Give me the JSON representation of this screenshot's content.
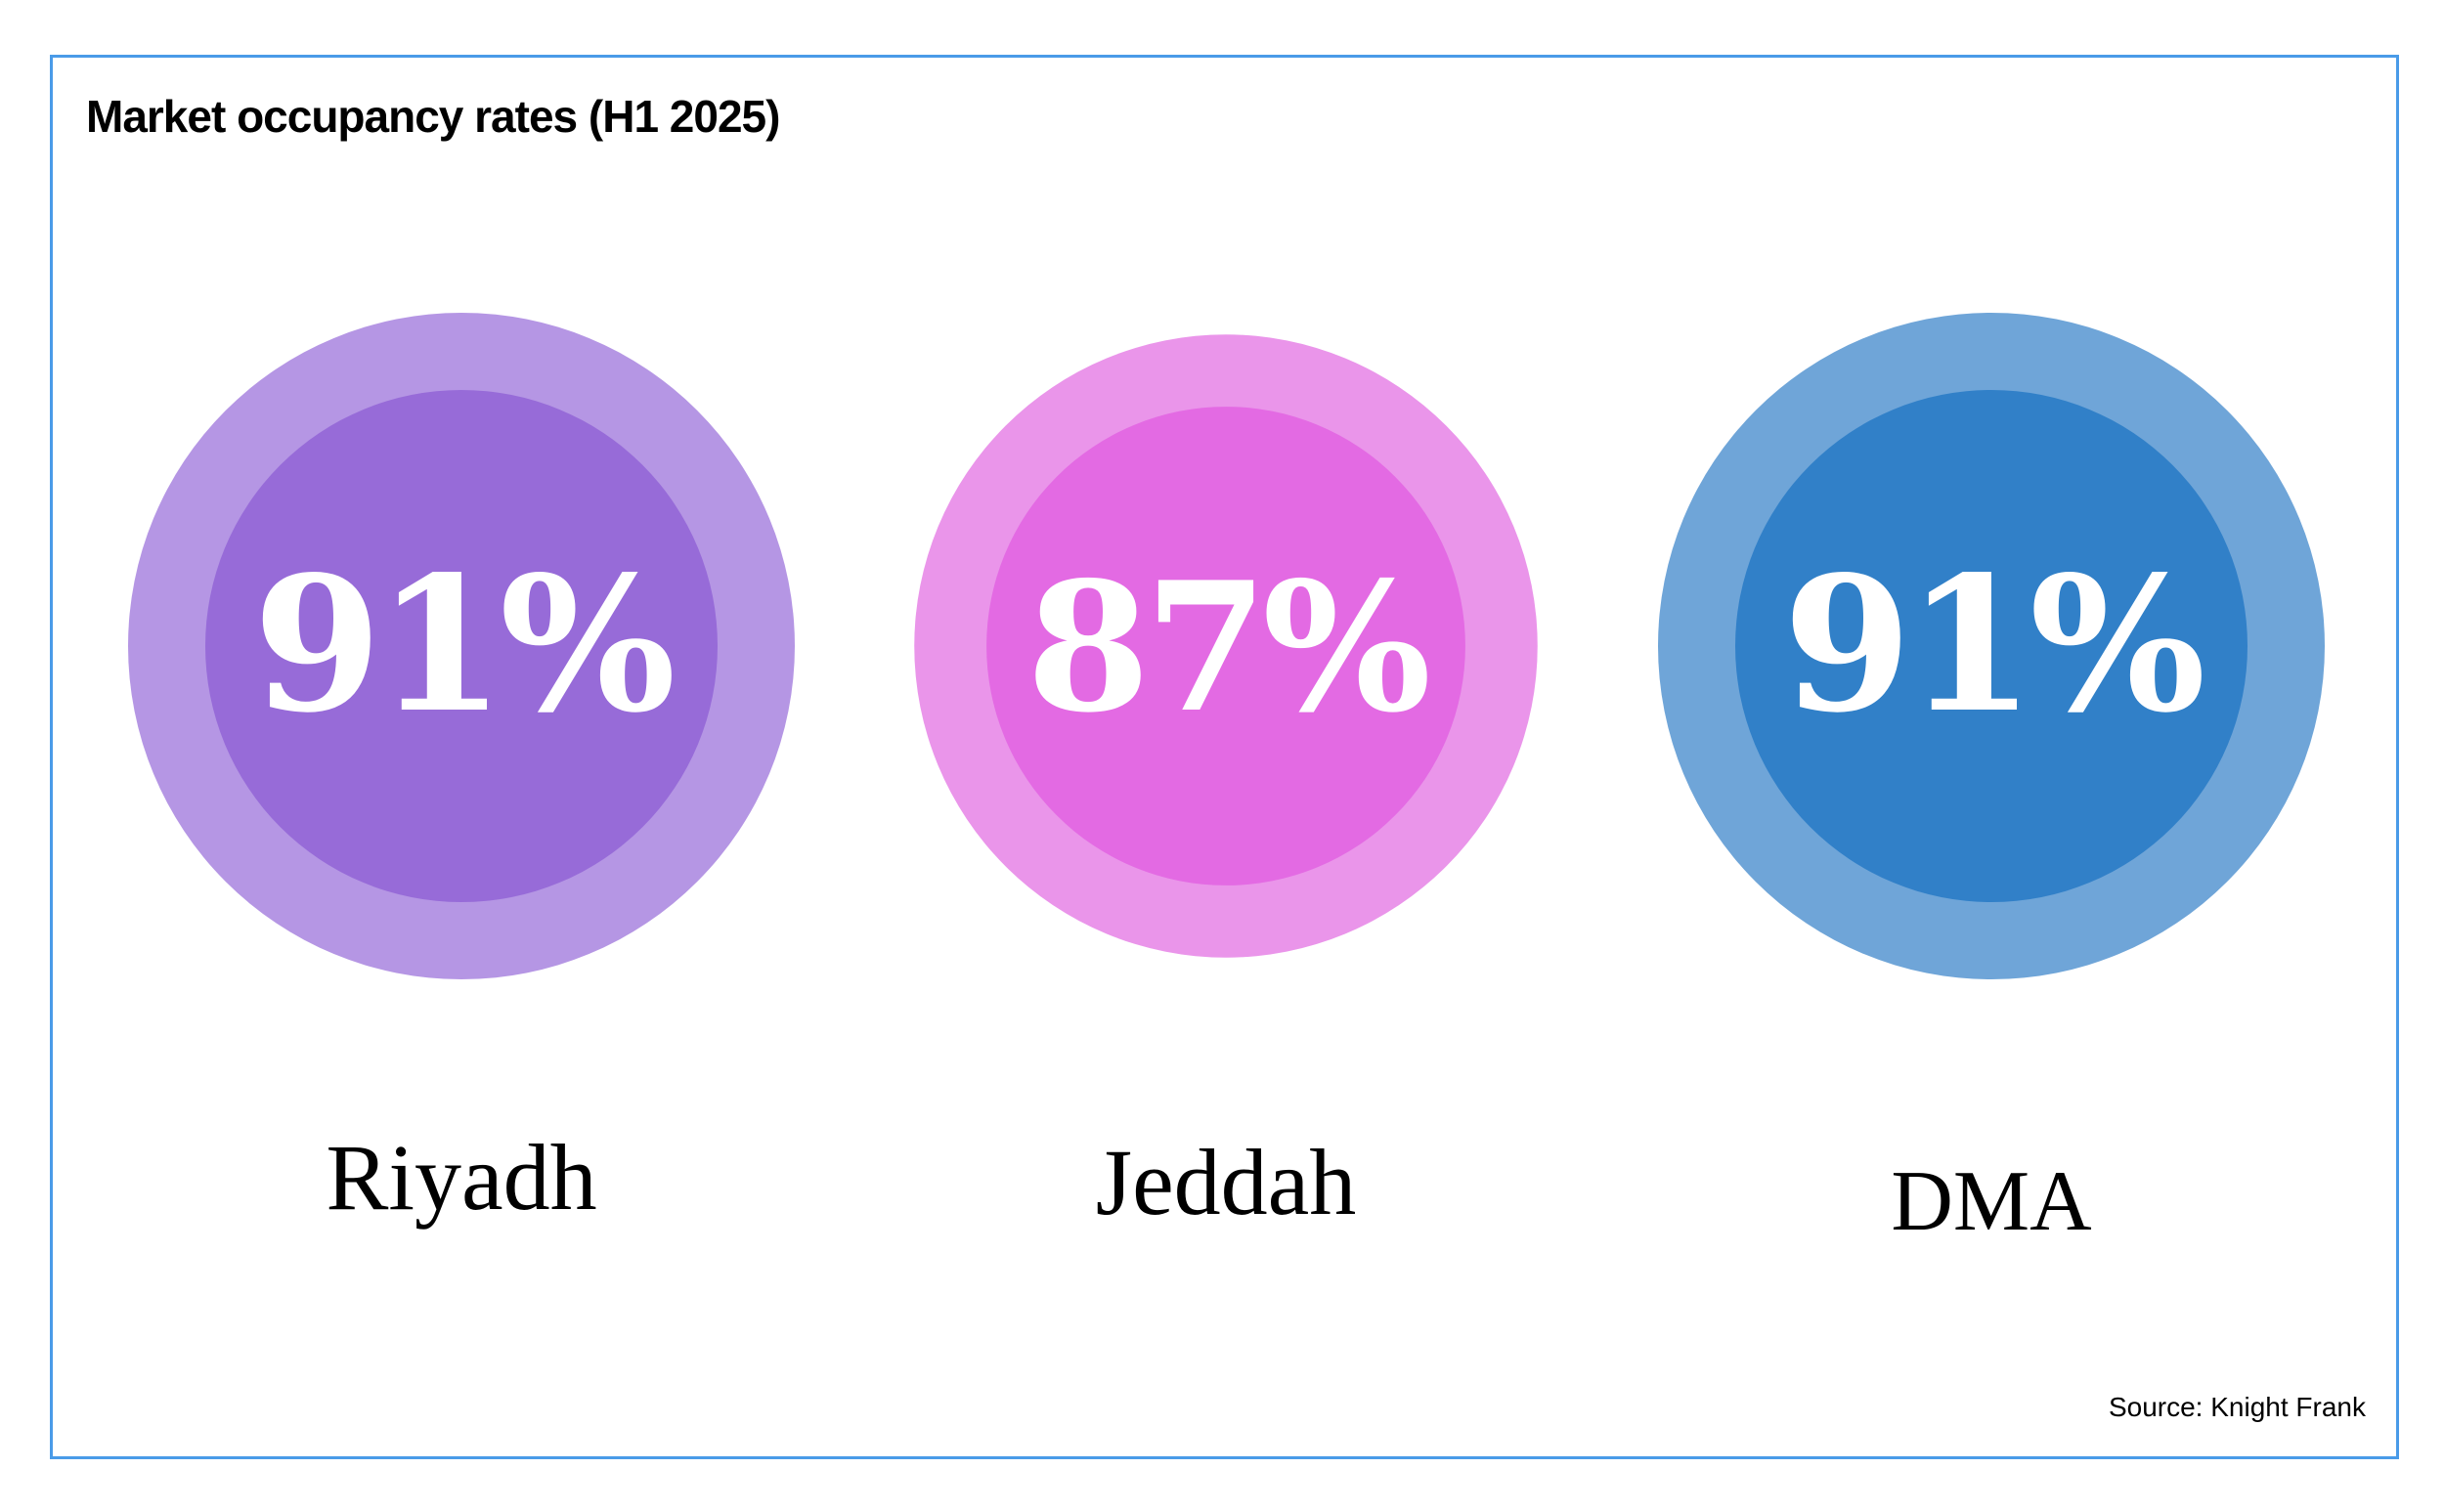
{
  "chart_data": {
    "type": "bubble",
    "title": "Market occupancy rates (H1 2025)",
    "source": "Source: Knight Frank",
    "unit": "%",
    "categories": [
      "Riyadh",
      "Jeddah",
      "DMA"
    ],
    "values": [
      91,
      87,
      91
    ],
    "value_labels": [
      "91%",
      "87%",
      "91%"
    ],
    "colors": {
      "outer": [
        "#b596e4",
        "#ea95ea",
        "#6fa5d8"
      ],
      "inner": [
        "#976bd8",
        "#e36ae3",
        "#3180c8"
      ]
    },
    "frame_color": "#4a9be8"
  }
}
